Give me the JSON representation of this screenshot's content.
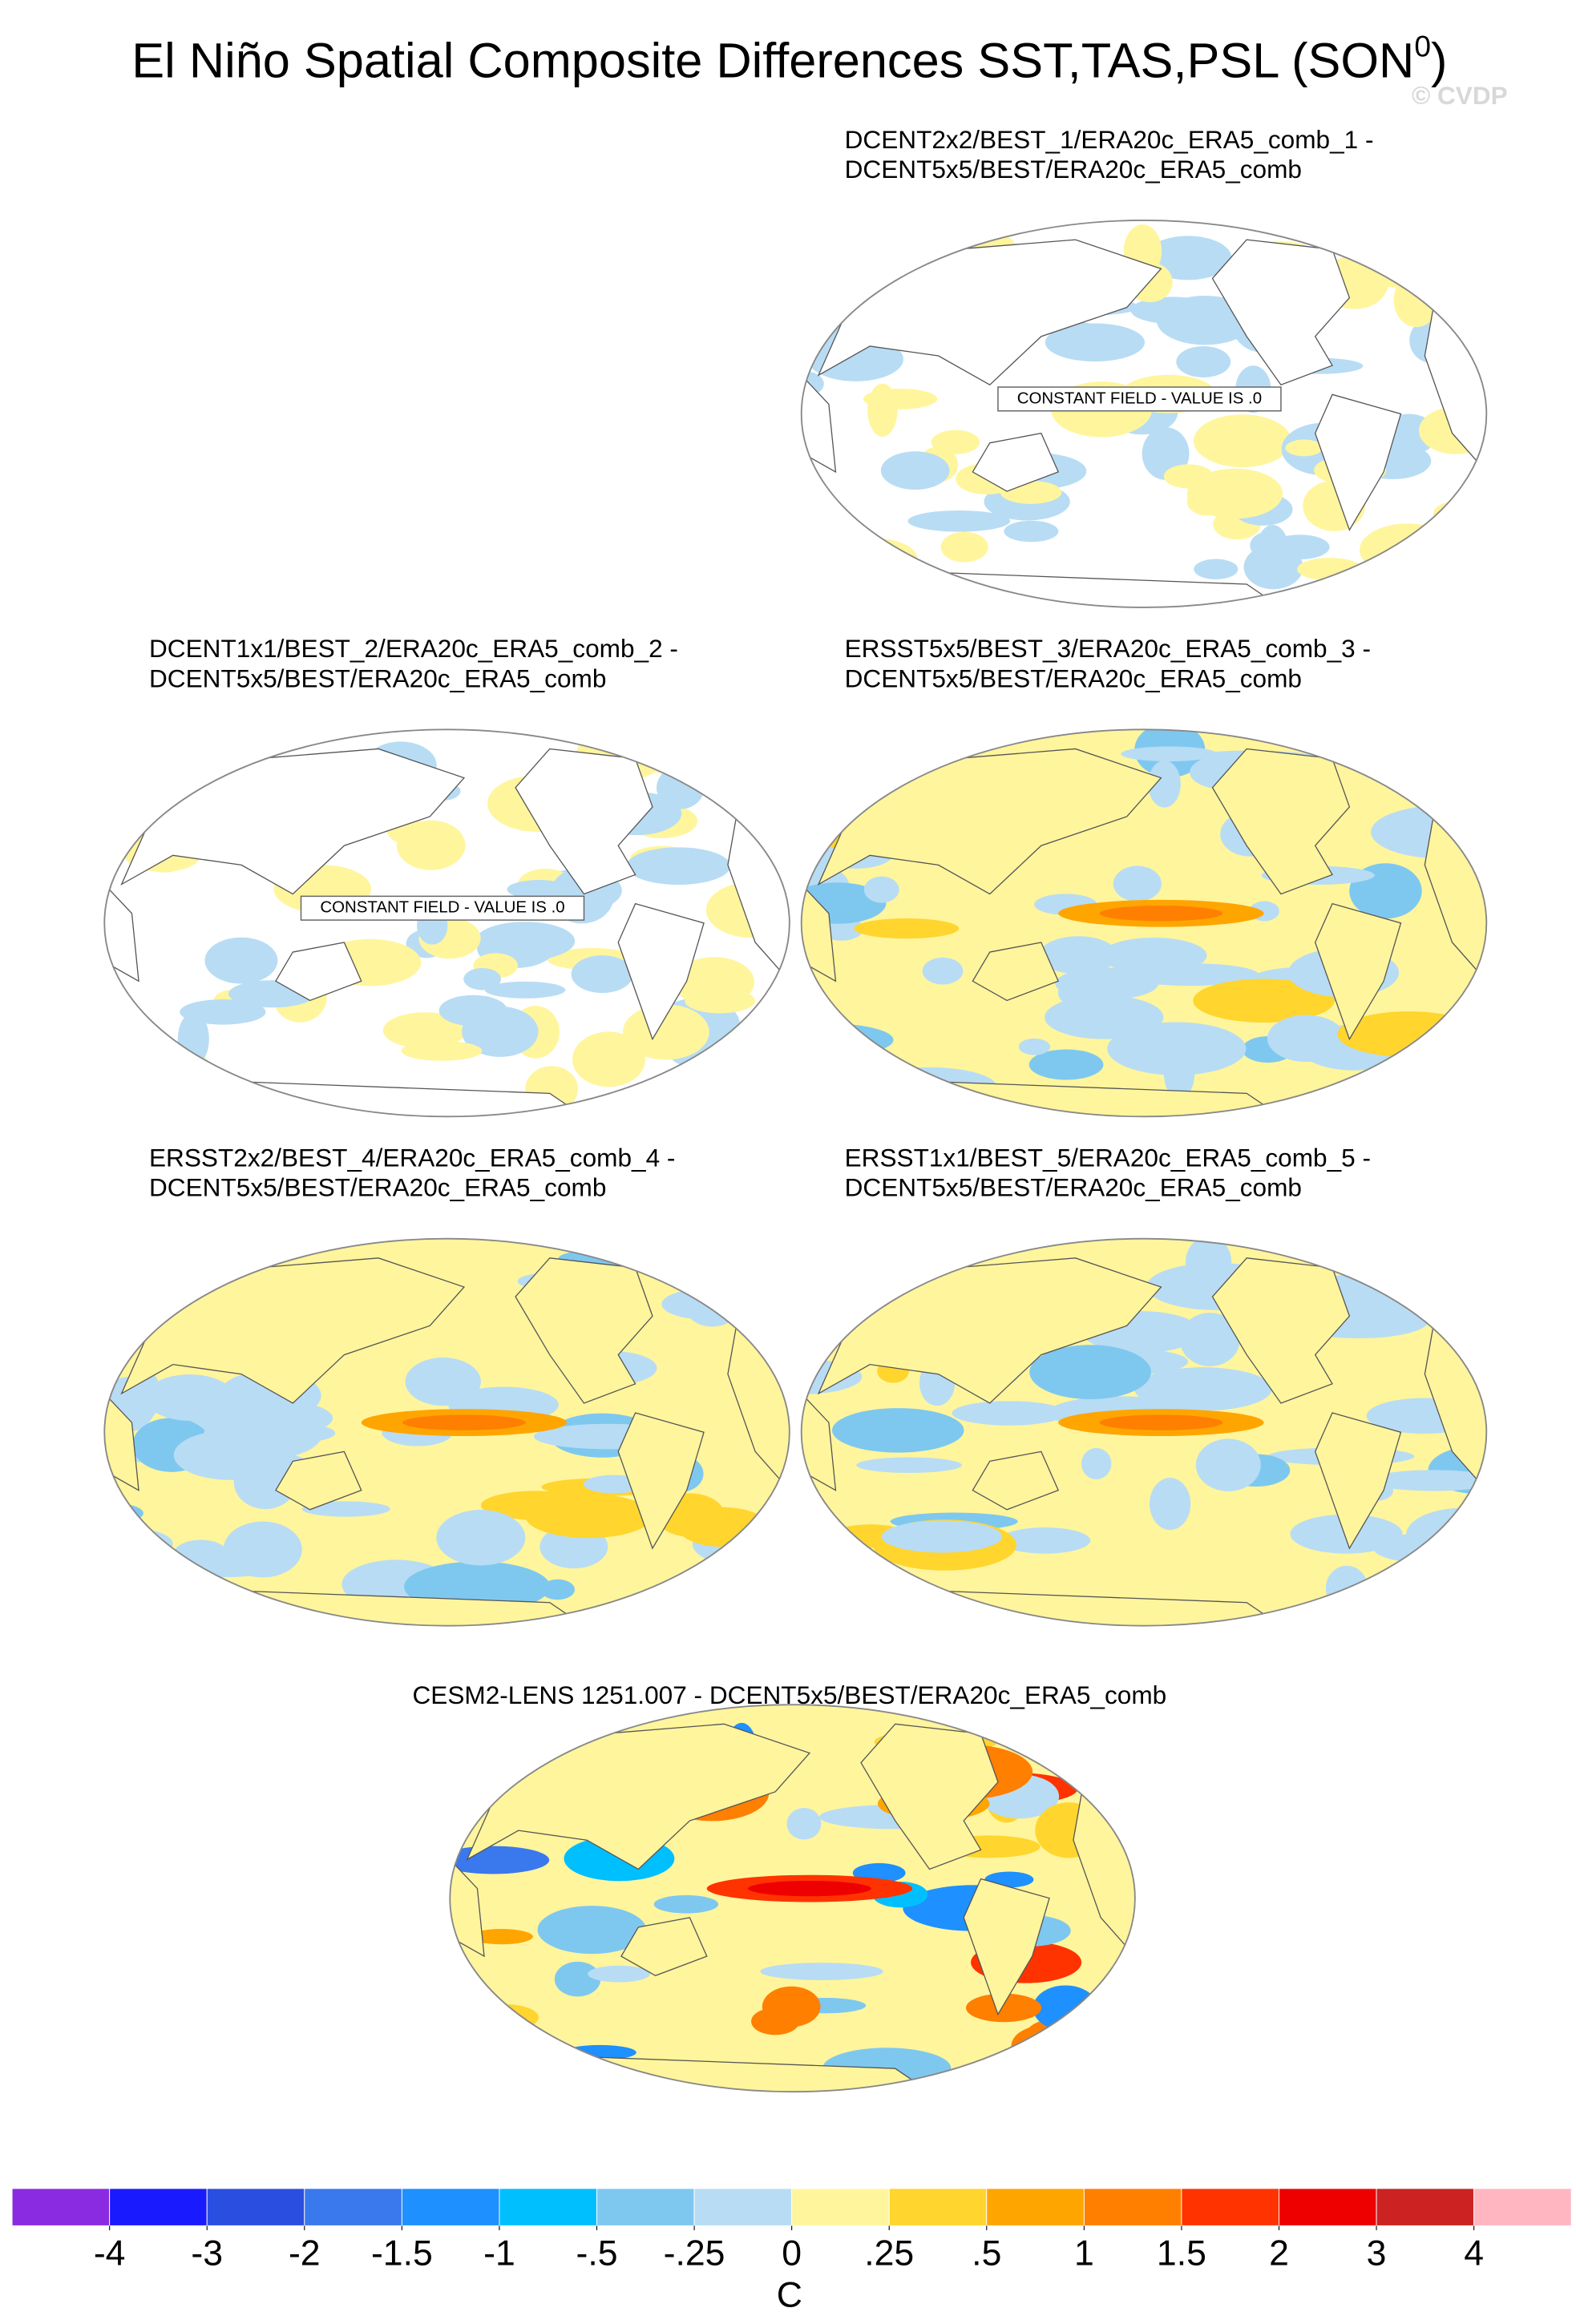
{
  "title": "El Niño Spatial Composite Differences SST,TAS,PSL (SON",
  "title_superscript": "0",
  "title_end": ")",
  "watermark": "© CVDP",
  "panels": [
    {
      "title_lines": [
        "DCENT2x2/BEST_1/ERA20c_ERA5_comb_1 -",
        "DCENT5x5/BEST/ERA20c_ERA5_comb"
      ],
      "annotation": "CONSTANT FIELD - VALUE IS .0"
    },
    {
      "title_lines": [
        "DCENT1x1/BEST_2/ERA20c_ERA5_comb_2 -",
        "DCENT5x5/BEST/ERA20c_ERA5_comb"
      ],
      "annotation": "CONSTANT FIELD - VALUE IS .0"
    },
    {
      "title_lines": [
        "ERSST5x5/BEST_3/ERA20c_ERA5_comb_3 -",
        "DCENT5x5/BEST/ERA20c_ERA5_comb"
      ]
    },
    {
      "title_lines": [
        "ERSST2x2/BEST_4/ERA20c_ERA5_comb_4 -",
        "DCENT5x5/BEST/ERA20c_ERA5_comb"
      ]
    },
    {
      "title_lines": [
        "ERSST1x1/BEST_5/ERA20c_ERA5_comb_5 -",
        "DCENT5x5/BEST/ERA20c_ERA5_comb"
      ]
    },
    {
      "title_lines": [
        "CESM2-LENS 1251.007 - DCENT5x5/BEST/ERA20c_ERA5_comb"
      ]
    }
  ],
  "colorbar": {
    "ticks": [
      -4,
      -3,
      -2,
      {
        "value": -1.5,
        "label": "-1.5"
      },
      -1,
      {
        "value": -0.5,
        "label": "-.5"
      },
      {
        "value": -0.25,
        "label": "-.25"
      },
      0,
      {
        "value": 0.25,
        "label": ".25"
      },
      {
        "value": 0.5,
        "label": ".5"
      },
      1,
      {
        "value": 1.5,
        "label": "1.5"
      },
      2,
      3,
      4
    ],
    "colors": [
      "#8a2be2",
      "#1a1aff",
      "#2a4fe0",
      "#3a78ee",
      "#1e90ff",
      "#00bfff",
      "#7ec8f0",
      "#b8dcf4",
      "#fff59d",
      "#ffd52e",
      "#ffa500",
      "#ff7f00",
      "#ff3300",
      "#ee0000",
      "#cc2222",
      "#ffb6c1"
    ],
    "unit": "C"
  }
}
